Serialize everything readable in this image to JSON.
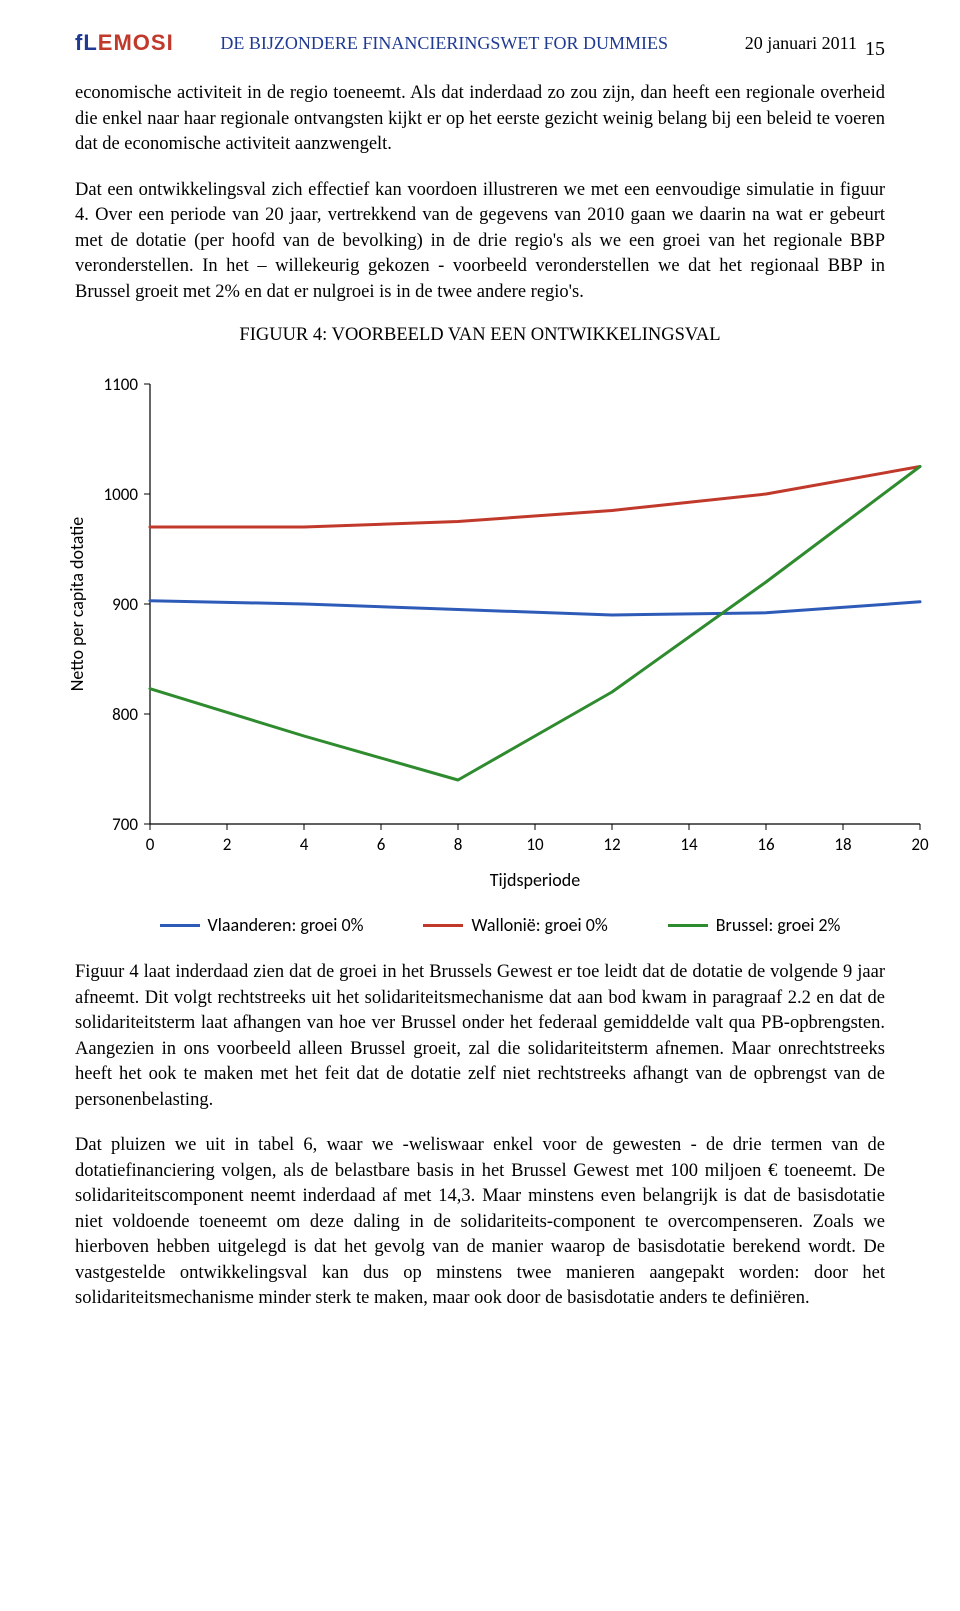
{
  "header": {
    "logo_text": "fLEMOSI",
    "title": "DE BIJZONDERE FINANCIERINGSWET FOR DUMMIES",
    "date": "20 januari 2011",
    "page_number": "15"
  },
  "paragraphs": {
    "p1": "economische activiteit in de regio toeneemt. Als dat inderdaad zo zou zijn, dan heeft een regionale overheid die enkel naar haar regionale ontvangsten kijkt er op het eerste gezicht weinig belang bij een beleid te voeren dat de economische activiteit aanzwengelt.",
    "p2": "Dat een ontwikkelingsval zich effectief kan voordoen illustreren we met een eenvoudige simulatie in figuur 4. Over een periode van 20 jaar, vertrekkend van de gegevens van 2010 gaan we daarin na wat er gebeurt met de dotatie (per hoofd van de bevolking) in de drie regio's als we een groei van het regionale BBP veronderstellen. In het – willekeurig gekozen - voorbeeld veronderstellen we dat het regionaal BBP in Brussel groeit met 2% en dat er nulgroei is in de twee andere regio's.",
    "p3": "Figuur 4 laat inderdaad zien dat de groei in het Brussels Gewest er toe leidt dat de dotatie de volgende 9 jaar afneemt. Dit volgt rechtstreeks uit het solidariteitsmechanisme dat aan bod kwam in paragraaf 2.2 en dat de solidariteitsterm laat afhangen van hoe ver Brussel onder het federaal gemiddelde valt qua PB-opbrengsten. Aangezien in ons voorbeeld alleen Brussel groeit, zal die solidariteitsterm afnemen. Maar onrechtstreeks heeft het ook te maken met het feit dat de dotatie zelf niet rechtstreeks afhangt van de opbrengst van de personenbelasting.",
    "p4": "Dat pluizen we uit in tabel 6, waar we -weliswaar enkel voor de gewesten - de drie termen van de dotatiefinanciering volgen, als de belastbare basis in het Brussel Gewest met 100 miljoen € toeneemt. De solidariteitscomponent neemt inderdaad af met 14,3. Maar minstens even belangrijk is dat de basisdotatie niet voldoende toeneemt om deze daling in de solidariteits-component te overcompenseren. Zoals we hierboven hebben uitgelegd is dat het gevolg van de manier waarop de basisdotatie berekend wordt. De vastgestelde ontwikkelingsval kan dus op minstens twee manieren aangepakt worden: door het solidariteitsmechanisme minder sterk te maken, maar ook door de basisdotatie anders te definiëren."
  },
  "figure": {
    "title": "FIGUUR 4: VOORBEELD VAN EEN ONTWIKKELINGSVAL",
    "type": "line",
    "ylabel": "Netto per capita dotatie",
    "xlabel": "Tijdsperiode",
    "ylim": [
      700,
      1100
    ],
    "yticks": [
      700,
      800,
      900,
      1000,
      1100
    ],
    "xlim": [
      0,
      20
    ],
    "xticks": [
      0,
      2,
      4,
      6,
      8,
      10,
      12,
      14,
      16,
      18,
      20
    ],
    "axis_font": "Calibri, Arial, sans-serif",
    "axis_fontsize": 17,
    "label_fontsize": 18,
    "tick_color": "#000000",
    "axis_color": "#000000",
    "grid": false,
    "background_color": "#ffffff",
    "line_width": 3,
    "series": [
      {
        "name": "Vlaanderen: groei 0%",
        "color": "#2e5bb8",
        "x": [
          0,
          4,
          8,
          12,
          16,
          20
        ],
        "y": [
          903,
          900,
          895,
          890,
          892,
          902
        ]
      },
      {
        "name": "Wallonië: groei 0%",
        "color": "#c0392b",
        "x": [
          0,
          4,
          8,
          12,
          16,
          20
        ],
        "y": [
          970,
          970,
          975,
          985,
          1000,
          1025
        ]
      },
      {
        "name": "Brussel: groei 2%",
        "color": "#2e8b2e",
        "x": [
          0,
          4,
          8,
          12,
          16,
          20
        ],
        "y": [
          823,
          780,
          740,
          820,
          920,
          1025
        ]
      }
    ]
  }
}
